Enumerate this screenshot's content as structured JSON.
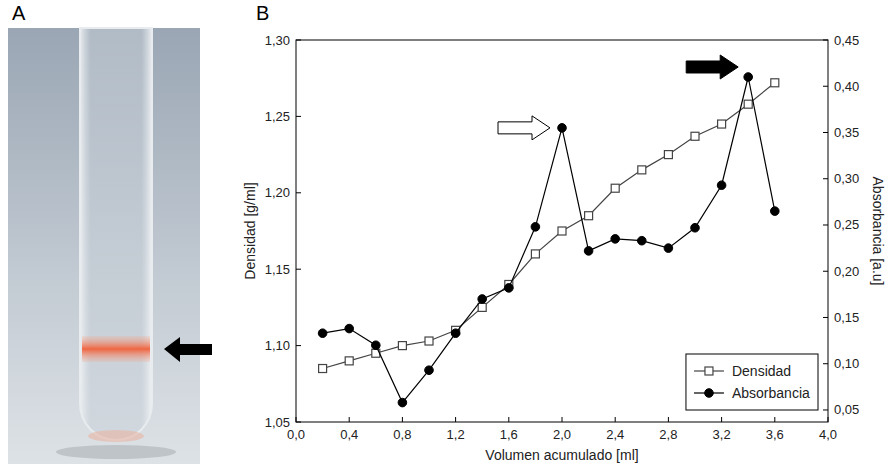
{
  "panel_labels": [
    "A",
    "B"
  ],
  "chart_data": {
    "type": "line",
    "x_label": "Volumen acumulado [ml]",
    "y_label": "Densidad [g/ml]",
    "y2_label": "Absorbancia [a.u]",
    "x": [
      0.2,
      0.4,
      0.6,
      0.8,
      1.0,
      1.2,
      1.4,
      1.6,
      1.8,
      2.0,
      2.2,
      2.4,
      2.6,
      2.8,
      3.0,
      3.2,
      3.4,
      3.6
    ],
    "series": [
      {
        "name": "Densidad",
        "color": "#444444",
        "marker": "open-square",
        "line_style": "solid",
        "values": [
          1.085,
          1.09,
          1.095,
          1.1,
          1.103,
          1.11,
          1.125,
          1.14,
          1.16,
          1.175,
          1.185,
          1.203,
          1.215,
          1.225,
          1.237,
          1.245,
          1.258,
          1.272
        ]
      },
      {
        "name": "Absorbancia",
        "color": "#000000",
        "marker": "circle",
        "line_style": "solid",
        "axis": "y2",
        "values": [
          0.133,
          0.138,
          0.12,
          0.058,
          0.093,
          0.133,
          0.17,
          0.182,
          0.248,
          0.355,
          0.222,
          0.235,
          0.233,
          0.225,
          0.247,
          0.293,
          0.41,
          0.265
        ]
      }
    ],
    "xlim": [
      0,
      4
    ],
    "xticks": [
      {
        "value": 0,
        "label": "0,0"
      },
      {
        "value": 0.4,
        "label": "0,4"
      },
      {
        "value": 0.8,
        "label": "0,8"
      },
      {
        "value": 1.2,
        "label": "1,2"
      },
      {
        "value": 1.6,
        "label": "1,6"
      },
      {
        "value": 2.0,
        "label": "2,0"
      },
      {
        "value": 2.4,
        "label": "2,4"
      },
      {
        "value": 2.8,
        "label": "2,8"
      },
      {
        "value": 3.2,
        "label": "3,2"
      },
      {
        "value": 3.6,
        "label": "3,6"
      },
      {
        "value": 4.0,
        "label": "4,0"
      }
    ],
    "ylim": [
      1.05,
      1.3
    ],
    "yticks": [
      {
        "value": 1.05,
        "label": "1,05"
      },
      {
        "value": 1.1,
        "label": "1,10"
      },
      {
        "value": 1.15,
        "label": "1,15"
      },
      {
        "value": 1.2,
        "label": "1,20"
      },
      {
        "value": 1.25,
        "label": "1,25"
      },
      {
        "value": 1.3,
        "label": "1,30"
      }
    ],
    "y2lim": [
      0.037,
      0.45
    ],
    "y2ticks": [
      {
        "value": 0.05,
        "label": "0,05"
      },
      {
        "value": 0.1,
        "label": "0,10"
      },
      {
        "value": 0.15,
        "label": "0,15"
      },
      {
        "value": 0.2,
        "label": "0,20"
      },
      {
        "value": 0.25,
        "label": "0,25"
      },
      {
        "value": 0.3,
        "label": "0,30"
      },
      {
        "value": 0.35,
        "label": "0,35"
      },
      {
        "value": 0.4,
        "label": "0,40"
      },
      {
        "value": 0.45,
        "label": "0,45"
      }
    ],
    "legend": "lower right",
    "grid": false
  }
}
